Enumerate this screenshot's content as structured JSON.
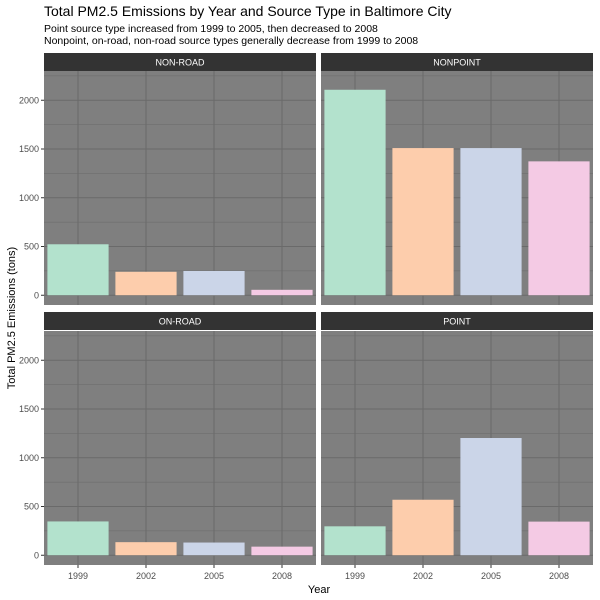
{
  "chart_data": {
    "type": "bar",
    "title": "Total PM2.5 Emissions by Year and Source Type in Baltimore City",
    "subtitle": [
      "Point source type increased from 1999 to 2005, then decreased to 2008",
      "Nonpoint, on-road, non-road source types generally decrease from 1999 to 2008"
    ],
    "xlabel": "Year",
    "ylabel": "Total PM2.5 Emissions (tons)",
    "categories": [
      "1999",
      "2002",
      "2005",
      "2008"
    ],
    "ylim": [
      -100,
      2300
    ],
    "yticks": [
      0,
      500,
      1000,
      1500,
      2000
    ],
    "bar_colors": [
      "#b3e2cd",
      "#fdcdac",
      "#cbd5e8",
      "#f4cae4"
    ],
    "panel_background": "#7f7f7f",
    "grid_color": "#6a6a6a",
    "strip_background": "#333333",
    "grid": true,
    "legend": "none",
    "facets": [
      {
        "name": "NON-ROAD",
        "values": [
          522.9,
          240.8,
          248.9,
          55.8
        ]
      },
      {
        "name": "NONPOINT",
        "values": [
          2107.6,
          1509.5,
          1509.5,
          1373.2
        ]
      },
      {
        "name": "ON-ROAD",
        "values": [
          346.8,
          134.3,
          130.4,
          88.3
        ]
      },
      {
        "name": "POINT",
        "values": [
          296.8,
          569.3,
          1202.5,
          345.0
        ]
      }
    ]
  }
}
